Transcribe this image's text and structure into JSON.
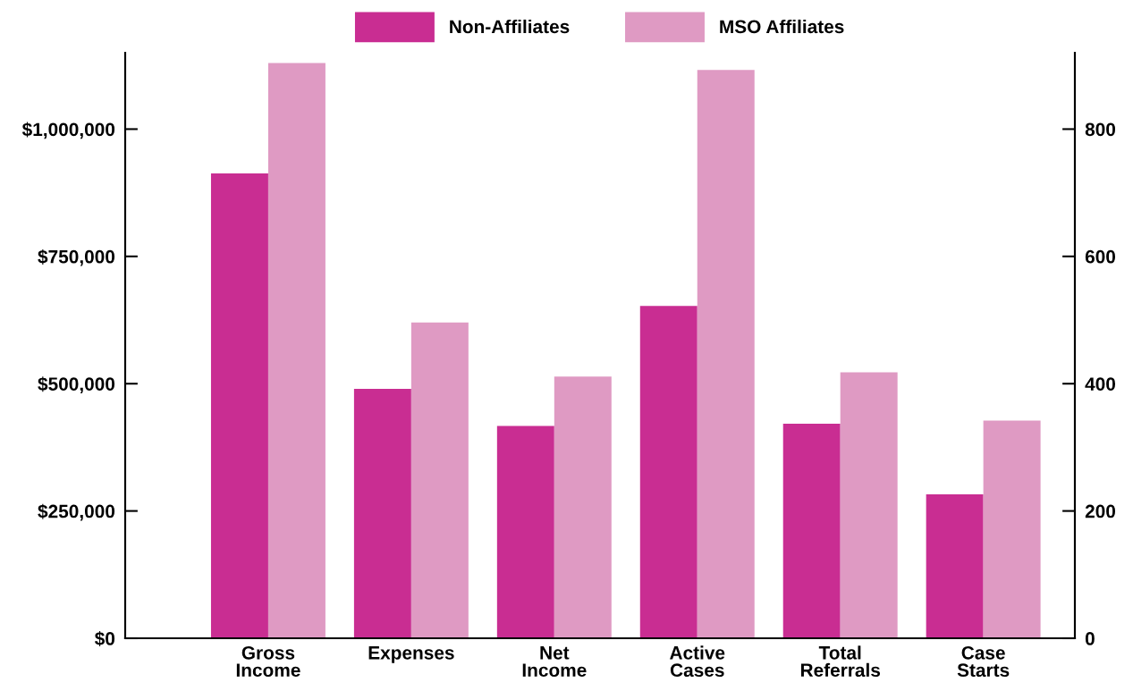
{
  "chart_data": {
    "type": "bar",
    "categories": [
      "Gross\nIncome",
      "Expenses",
      "Net\nIncome",
      "Active\nCases",
      "Total\nReferrals",
      "Case\nStarts"
    ],
    "series": [
      {
        "name": "Non-Affiliates",
        "color": "#c92d92",
        "values": [
          913000,
          490000,
          417000,
          null,
          null,
          null
        ]
      },
      {
        "name": "MSO Affiliates",
        "color": "#df9ac3",
        "values": [
          1130000,
          620000,
          514000,
          null,
          null,
          null
        ]
      },
      {
        "color": "#c92d92",
        "axis": "y2",
        "values": [
          null,
          null,
          null,
          522,
          337,
          226
        ]
      },
      {
        "color": "#df9ac3",
        "axis": "y2",
        "values": [
          null,
          null,
          null,
          893,
          418,
          342
        ]
      }
    ],
    "ylim": [
      0,
      1150000
    ],
    "yticks": [
      {
        "value": 0,
        "label": "$0"
      },
      {
        "value": 250000,
        "label": "$250,000"
      },
      {
        "value": 500000,
        "label": "$500,000"
      },
      {
        "value": 750000,
        "label": "$750,000"
      },
      {
        "value": 1000000,
        "label": "$1,000,000"
      }
    ],
    "y2lim": [
      0,
      920
    ],
    "y2ticks": [
      0,
      200,
      400,
      600,
      800
    ],
    "legend": "top",
    "grid": false
  }
}
